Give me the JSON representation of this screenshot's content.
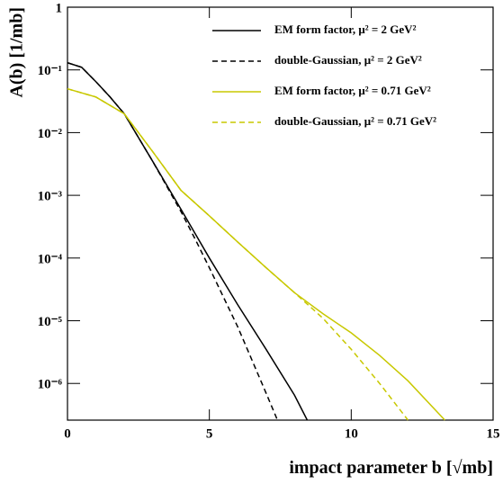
{
  "chart_data": {
    "type": "line",
    "xlabel": "impact parameter b [√mb]",
    "ylabel": "A(b) [1/mb]",
    "xlim": [
      0,
      15
    ],
    "ylim": [
      2.6e-07,
      1
    ],
    "xticks": [
      0,
      5,
      10,
      15
    ],
    "yticks": [
      1,
      {
        "value": 0.1,
        "label": "10⁻¹"
      },
      {
        "value": 0.01,
        "label": "10⁻²"
      },
      {
        "value": 0.001,
        "label": "10⁻³"
      },
      {
        "value": 0.0001,
        "label": "10⁻⁴"
      },
      {
        "value": 1e-05,
        "label": "10⁻⁵"
      },
      {
        "value": 1e-06,
        "label": "10⁻⁶"
      }
    ],
    "log_y": true,
    "legend": "upper right",
    "series": [
      {
        "name": "EM form factor, μ² = 2 GeV²",
        "color": "#000000",
        "dash": false,
        "x": [
          0,
          0.5,
          1,
          1.5,
          2,
          3,
          4,
          5,
          6,
          7,
          8,
          8.45
        ],
        "values": [
          0.13,
          0.11,
          0.065,
          0.037,
          0.02,
          0.0035,
          0.0006,
          0.0001,
          1.8e-05,
          3.5e-06,
          6.5e-07,
          2.6e-07
        ]
      },
      {
        "name": "double-Gaussian, μ² = 2 GeV²",
        "color": "#000000",
        "dash": true,
        "x": [
          0,
          0.5,
          1,
          1.5,
          2,
          3,
          4,
          4.5,
          5,
          6,
          7,
          7.4
        ],
        "values": [
          0.13,
          0.11,
          0.065,
          0.037,
          0.02,
          0.0035,
          0.00055,
          0.0002,
          7e-05,
          8e-06,
          7e-07,
          2.6e-07
        ]
      },
      {
        "name": "EM form factor, μ² = 0.71 GeV²",
        "color": "#c8c800",
        "dash": false,
        "x": [
          0,
          1,
          2,
          3,
          4,
          5,
          6,
          7,
          8,
          9,
          10,
          11,
          12,
          13.3
        ],
        "values": [
          0.05,
          0.037,
          0.02,
          0.005,
          0.0012,
          0.00047,
          0.00018,
          7e-05,
          2.8e-05,
          1.3e-05,
          6.4e-06,
          2.8e-06,
          1.1e-06,
          2.6e-07
        ]
      },
      {
        "name": "double-Gaussian, μ² = 0.71 GeV²",
        "color": "#c8c800",
        "dash": true,
        "x": [
          0,
          1,
          2,
          3,
          4,
          5,
          6,
          7,
          8,
          9,
          10,
          11,
          12
        ],
        "values": [
          0.05,
          0.037,
          0.02,
          0.005,
          0.0012,
          0.00047,
          0.00018,
          7e-05,
          2.8e-05,
          1.1e-05,
          3.5e-06,
          1e-06,
          2.6e-07
        ]
      }
    ]
  }
}
